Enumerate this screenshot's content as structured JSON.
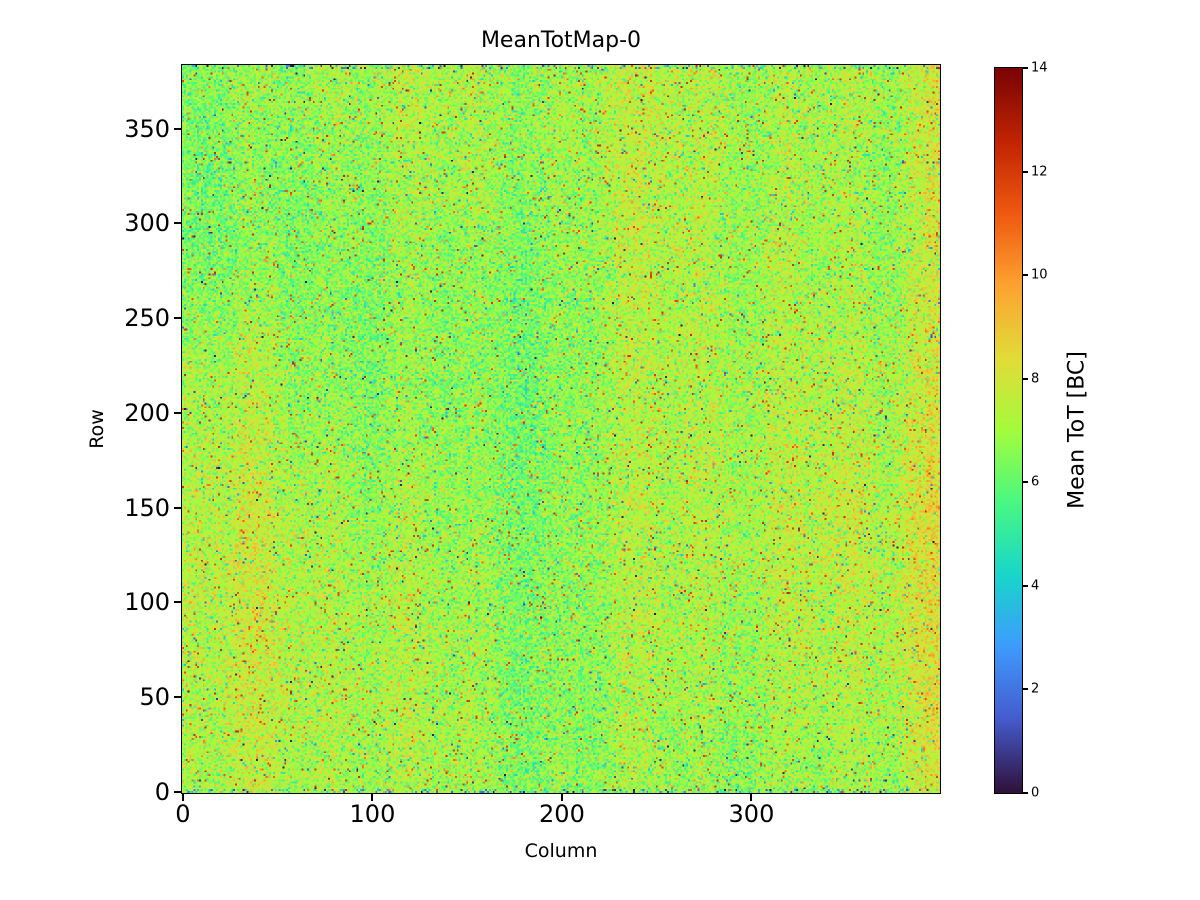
{
  "figure": {
    "background": "#ffffff"
  },
  "chart_data": {
    "type": "heatmap",
    "title": "MeanTotMap-0",
    "xlabel": "Column",
    "ylabel": "Row",
    "x_range": [
      0,
      400
    ],
    "y_range": [
      0,
      384
    ],
    "x_ticks": [
      0,
      100,
      200,
      300
    ],
    "y_ticks": [
      0,
      50,
      100,
      150,
      200,
      250,
      300,
      350
    ],
    "grid": {
      "cols": 400,
      "rows": 384
    },
    "colorbar": {
      "label": "Mean ToT [BC]",
      "ticks": [
        0,
        2,
        4,
        6,
        8,
        10,
        12,
        14
      ],
      "vmin": 0,
      "vmax": 14
    },
    "colormap": {
      "name": "turbo",
      "stops": [
        [
          48,
          18,
          59
        ],
        [
          69,
          91,
          205
        ],
        [
          62,
          155,
          254
        ],
        [
          24,
          214,
          203
        ],
        [
          72,
          248,
          130
        ],
        [
          164,
          252,
          60
        ],
        [
          226,
          220,
          56
        ],
        [
          254,
          163,
          49
        ],
        [
          239,
          89,
          17
        ],
        [
          194,
          36,
          3
        ],
        [
          122,
          4,
          3
        ]
      ]
    },
    "value_model": {
      "description": "Pixel-detector mean time-over-threshold map: ~7 BC average over the full 400x384 pixel matrix with ~0.85 BC per-pixel noise, faint vertical column stripes, a cooler (~6.4 BC) upper-left region, a hotter (~8-9 BC) band near columns 368-399, sparse outlier pixels spanning 3.5-12.5 BC, rare dark (<2.6 BC) speckles, and clusters of low-value dark-blue pixels along the top and bottom sensor edge rows",
      "seed": 42,
      "base_mean": 7.0,
      "noise_sigma": 0.85,
      "stripe_amplitude": 0.5,
      "upper_left_offset": -0.55,
      "right_band_offset": 1.1,
      "right_band_start_col": 368,
      "outlier_fraction": 0.085,
      "outlier_range": [
        3.5,
        12.5
      ],
      "dark_speckle_fraction": 0.006,
      "edge_dark_fraction": 0.22
    }
  }
}
